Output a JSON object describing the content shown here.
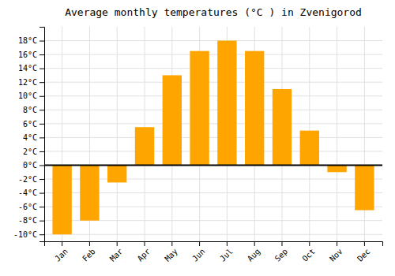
{
  "chart_data": {
    "type": "bar",
    "title": "Average monthly temperatures (°C ) in Zvenigorod",
    "categories": [
      "Jan",
      "Feb",
      "Mar",
      "Apr",
      "May",
      "Jun",
      "Jul",
      "Aug",
      "Sep",
      "Oct",
      "Nov",
      "Dec"
    ],
    "values": [
      -10,
      -8,
      -2.5,
      5.5,
      13,
      16.5,
      18,
      16.5,
      11,
      5,
      -1,
      -6.5
    ],
    "color": "#FFA500",
    "ylim": [
      -11,
      20
    ],
    "yticks": [
      {
        "value": -10,
        "label": "-10°C"
      },
      {
        "value": -8,
        "label": "-8°C"
      },
      {
        "value": -6,
        "label": "-6°C"
      },
      {
        "value": -4,
        "label": "-4°C"
      },
      {
        "value": -2,
        "label": "-2°C"
      },
      {
        "value": 0,
        "label": "0°C"
      },
      {
        "value": 2,
        "label": "2°C"
      },
      {
        "value": 4,
        "label": "4°C"
      },
      {
        "value": 6,
        "label": "6°C"
      },
      {
        "value": 8,
        "label": "8°C"
      },
      {
        "value": 10,
        "label": "10°C"
      },
      {
        "value": 12,
        "label": "12°C"
      },
      {
        "value": 14,
        "label": "14°C"
      },
      {
        "value": 16,
        "label": "16°C"
      },
      {
        "value": 18,
        "label": "18°C"
      }
    ],
    "grid": true
  }
}
